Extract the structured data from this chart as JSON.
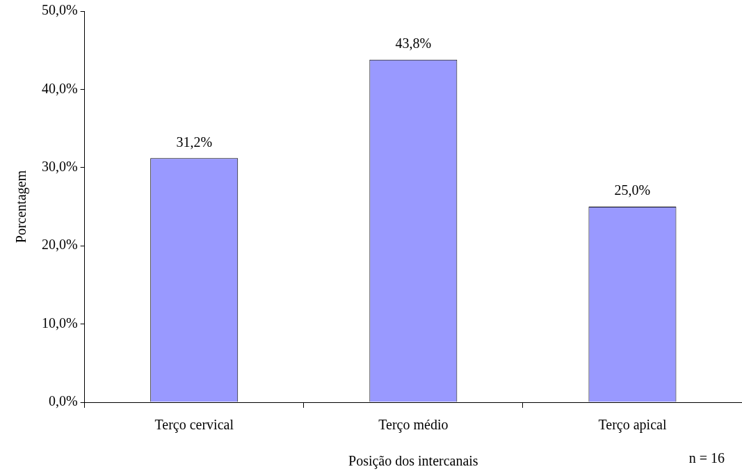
{
  "chart_data": {
    "type": "bar",
    "categories": [
      "Terço cervical",
      "Terço médio",
      "Terço apical"
    ],
    "values": [
      31.2,
      43.8,
      25.0
    ],
    "value_labels": [
      "31,2%",
      "43,8%",
      "25,0%"
    ],
    "color": "#9999ff",
    "ylabel": "Porcentagem",
    "xlabel": "Posição dos intercanais",
    "ylim": [
      0,
      50
    ],
    "yticks": [
      {
        "value": 0,
        "label": "0,0%"
      },
      {
        "value": 10,
        "label": "10,0%"
      },
      {
        "value": 20,
        "label": "20,0%"
      },
      {
        "value": 30,
        "label": "30,0%"
      },
      {
        "value": 40,
        "label": "40,0%"
      },
      {
        "value": 50,
        "label": "50,0%"
      }
    ],
    "grid": false,
    "legend": false,
    "annotations": [
      "n = 16"
    ]
  }
}
